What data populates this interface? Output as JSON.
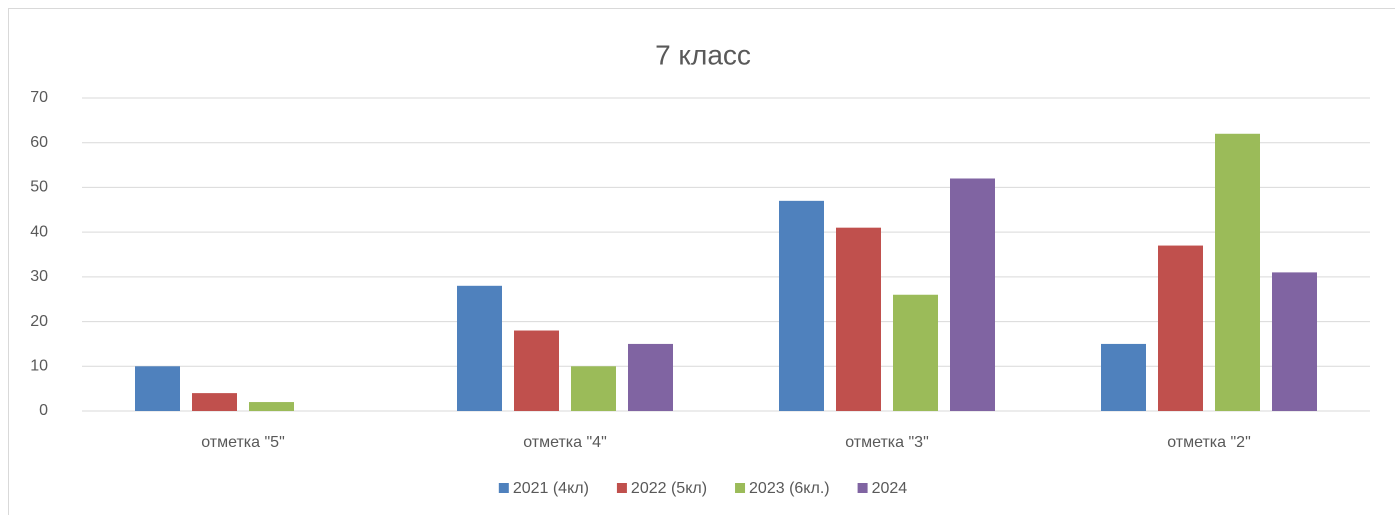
{
  "chart_data": {
    "type": "bar",
    "title": "7 класс",
    "categories": [
      "отметка \"5\"",
      "отметка \"4\"",
      "отметка \"3\"",
      "отметка \"2\""
    ],
    "series": [
      {
        "name": "2021 (4кл)",
        "color": "#4f81bd",
        "values": [
          10,
          28,
          47,
          15
        ]
      },
      {
        "name": "2022 (5кл)",
        "color": "#c0504d",
        "values": [
          4,
          18,
          41,
          37
        ]
      },
      {
        "name": "2023 (6кл.)",
        "color": "#9bbb59",
        "values": [
          2,
          10,
          26,
          62
        ]
      },
      {
        "name": "2024",
        "color": "#8064a2",
        "values": [
          0,
          15,
          52,
          31
        ]
      }
    ],
    "ylim": [
      0,
      70
    ],
    "yticks": [
      0,
      10,
      20,
      30,
      40,
      50,
      60,
      70
    ],
    "grid": true,
    "legend": "bottom"
  }
}
